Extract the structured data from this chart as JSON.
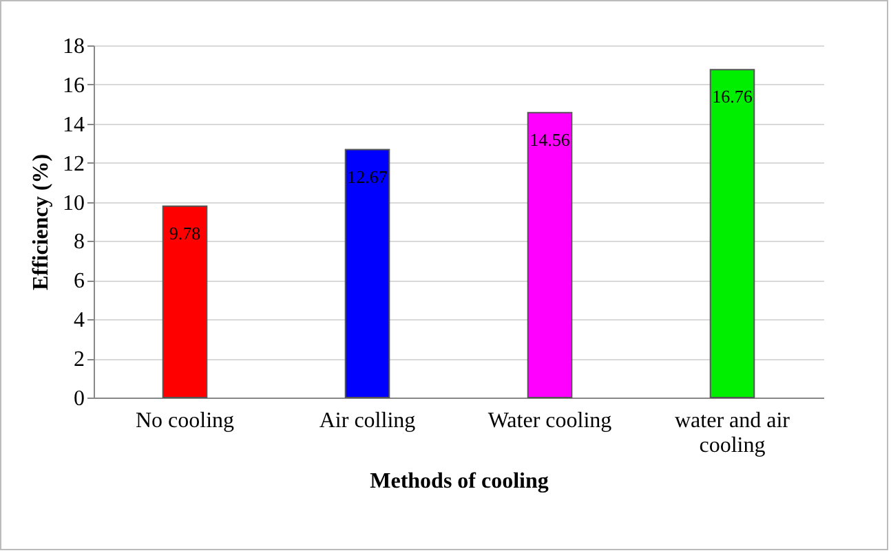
{
  "chart_data": {
    "type": "bar",
    "xlabel": "Methods of cooling",
    "ylabel": "Efficiency (%)",
    "categories": [
      "No cooling",
      "Air colling",
      "Water cooling",
      "water and air cooling"
    ],
    "values": [
      9.78,
      12.67,
      14.56,
      16.76
    ],
    "colors": [
      "#ff0000",
      "#0000ff",
      "#ff00ff",
      "#00ee00"
    ],
    "ylim": [
      0,
      18
    ],
    "yticks": [
      0,
      2,
      4,
      6,
      8,
      10,
      12,
      14,
      16,
      18
    ],
    "grid": "y",
    "data_labels": true
  }
}
